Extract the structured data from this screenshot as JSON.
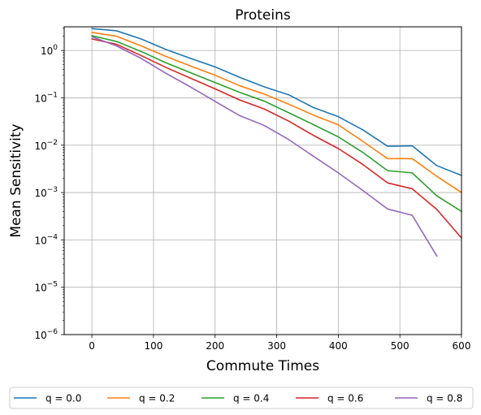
{
  "chart_data": {
    "type": "line",
    "title": "Proteins",
    "xlabel": "Commute Times",
    "ylabel": "Mean Sensitivity",
    "xlim": [
      -45,
      600
    ],
    "ylim": [
      1e-06,
      3.16
    ],
    "yscale": "log",
    "grid": true,
    "legend_position": "bottom",
    "x_ticks": [
      0,
      100,
      200,
      300,
      400,
      500,
      600
    ],
    "x_tick_labels": [
      "0",
      "100",
      "200",
      "300",
      "400",
      "500",
      "600"
    ],
    "y_ticks": [
      1e-06,
      1e-05,
      0.0001,
      0.001,
      0.01,
      0.1,
      1
    ],
    "y_tick_labels": [
      {
        "base": "10",
        "exp": "−6"
      },
      {
        "base": "10",
        "exp": "−5"
      },
      {
        "base": "10",
        "exp": "−4"
      },
      {
        "base": "10",
        "exp": "−3"
      },
      {
        "base": "10",
        "exp": "−2"
      },
      {
        "base": "10",
        "exp": "−1"
      },
      {
        "base": "10",
        "exp": "0"
      }
    ],
    "series": [
      {
        "name": "q = 0.0",
        "color": "#1f77b4",
        "x": [
          0,
          40,
          80,
          120,
          160,
          200,
          240,
          280,
          320,
          360,
          400,
          440,
          480,
          520,
          560,
          600
        ],
        "y": [
          2.9,
          2.6,
          1.75,
          1.05,
          0.68,
          0.45,
          0.27,
          0.17,
          0.115,
          0.062,
          0.04,
          0.021,
          0.0095,
          0.0097,
          0.0037,
          0.0023
        ]
      },
      {
        "name": "q = 0.2",
        "color": "#ff7f0e",
        "x": [
          0,
          40,
          80,
          120,
          160,
          200,
          240,
          280,
          320,
          360,
          400,
          440,
          480,
          520,
          560,
          600
        ],
        "y": [
          2.4,
          2.0,
          1.25,
          0.75,
          0.47,
          0.3,
          0.18,
          0.12,
          0.073,
          0.043,
          0.027,
          0.012,
          0.0052,
          0.0052,
          0.0022,
          0.001
        ]
      },
      {
        "name": "q = 0.4",
        "color": "#2ca02c",
        "x": [
          0,
          40,
          80,
          120,
          160,
          200,
          240,
          280,
          320,
          360,
          400,
          440,
          480,
          520,
          560,
          600
        ],
        "y": [
          2.05,
          1.55,
          0.95,
          0.55,
          0.34,
          0.21,
          0.13,
          0.085,
          0.048,
          0.027,
          0.015,
          0.007,
          0.0029,
          0.0026,
          0.00085,
          0.0004
        ]
      },
      {
        "name": "q = 0.6",
        "color": "#d62728",
        "x": [
          0,
          40,
          80,
          120,
          160,
          200,
          240,
          280,
          320,
          360,
          400,
          440,
          480,
          520,
          560,
          600
        ],
        "y": [
          1.75,
          1.35,
          0.78,
          0.44,
          0.26,
          0.155,
          0.09,
          0.058,
          0.032,
          0.016,
          0.0085,
          0.0039,
          0.0016,
          0.0012,
          0.00044,
          0.00011
        ]
      },
      {
        "name": "q = 0.8",
        "color": "#9467bd",
        "x": [
          0,
          40,
          80,
          120,
          160,
          200,
          240,
          280,
          320,
          360,
          400,
          440,
          480,
          520,
          560
        ],
        "y": [
          1.95,
          1.25,
          0.68,
          0.33,
          0.17,
          0.084,
          0.042,
          0.026,
          0.013,
          0.0058,
          0.0026,
          0.0011,
          0.00045,
          0.00033,
          4.55e-05
        ]
      }
    ]
  }
}
